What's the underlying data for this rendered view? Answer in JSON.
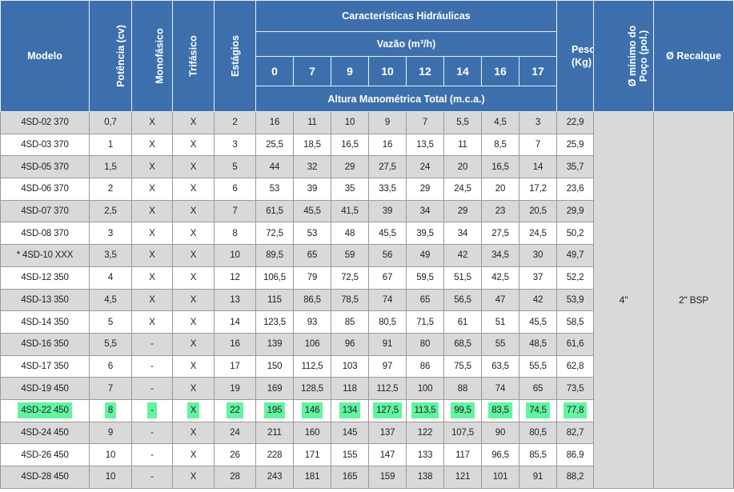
{
  "header": {
    "modelo": "Modelo",
    "potencia": "Potência (cv)",
    "monofasico": "Monofásico",
    "trifasico": "Trifásico",
    "estagios": "Estágios",
    "caracteristicas": "Características Hidráulicas",
    "vazao": "Vazão (m³/h)",
    "altura": "Altura Manométrica Total (m.c.a.)",
    "peso": "Peso (Kg)",
    "poco": "Ø mínimo do Poço (pol.)",
    "recalque": "Ø Recalque",
    "flows": [
      "0",
      "7",
      "9",
      "10",
      "12",
      "14",
      "16",
      "17"
    ]
  },
  "merged": {
    "poco_value": "4\"",
    "recalque_value": "2\" BSP"
  },
  "highlight_color": "#62f4a0",
  "rows": [
    {
      "modelo": "4SD-02 370",
      "potencia": "0,7",
      "mono": "X",
      "tri": "X",
      "estagios": "2",
      "heads": [
        "16",
        "11",
        "10",
        "9",
        "7",
        "5,5",
        "4,5",
        "3"
      ],
      "peso": "22,9"
    },
    {
      "modelo": "4SD-03 370",
      "potencia": "1",
      "mono": "X",
      "tri": "X",
      "estagios": "3",
      "heads": [
        "25,5",
        "18,5",
        "16,5",
        "16",
        "13,5",
        "11",
        "8,5",
        "7"
      ],
      "peso": "25,9"
    },
    {
      "modelo": "4SD-05 370",
      "potencia": "1,5",
      "mono": "X",
      "tri": "X",
      "estagios": "5",
      "heads": [
        "44",
        "32",
        "29",
        "27,5",
        "24",
        "20",
        "16,5",
        "14"
      ],
      "peso": "35,7"
    },
    {
      "modelo": "4SD-06 370",
      "potencia": "2",
      "mono": "X",
      "tri": "X",
      "estagios": "6",
      "heads": [
        "53",
        "39",
        "35",
        "33,5",
        "29",
        "24,5",
        "20",
        "17,2"
      ],
      "peso": "23,6"
    },
    {
      "modelo": "4SD-07 370",
      "potencia": "2,5",
      "mono": "X",
      "tri": "X",
      "estagios": "7",
      "heads": [
        "61,5",
        "45,5",
        "41,5",
        "39",
        "34",
        "29",
        "23",
        "20,5"
      ],
      "peso": "29,9"
    },
    {
      "modelo": "4SD-08 370",
      "potencia": "3",
      "mono": "X",
      "tri": "X",
      "estagios": "8",
      "heads": [
        "72,5",
        "53",
        "48",
        "45,5",
        "39,5",
        "34",
        "27,5",
        "24,5"
      ],
      "peso": "50,2"
    },
    {
      "modelo": "* 4SD-10 XXX",
      "potencia": "3,5",
      "mono": "X",
      "tri": "X",
      "estagios": "10",
      "heads": [
        "89,5",
        "65",
        "59",
        "56",
        "49",
        "42",
        "34,5",
        "30"
      ],
      "peso": "49,7"
    },
    {
      "modelo": "4SD-12 350",
      "potencia": "4",
      "mono": "X",
      "tri": "X",
      "estagios": "12",
      "heads": [
        "106,5",
        "79",
        "72,5",
        "67",
        "59,5",
        "51,5",
        "42,5",
        "37"
      ],
      "peso": "52,2"
    },
    {
      "modelo": "4SD-13 350",
      "potencia": "4,5",
      "mono": "X",
      "tri": "X",
      "estagios": "13",
      "heads": [
        "115",
        "86,5",
        "78,5",
        "74",
        "65",
        "56,5",
        "47",
        "42"
      ],
      "peso": "53,9"
    },
    {
      "modelo": "4SD-14 350",
      "potencia": "5",
      "mono": "X",
      "tri": "X",
      "estagios": "14",
      "heads": [
        "123,5",
        "93",
        "85",
        "80,5",
        "71,5",
        "61",
        "51",
        "45,5"
      ],
      "peso": "58,5"
    },
    {
      "modelo": "4SD-16 350",
      "potencia": "5,5",
      "mono": "-",
      "tri": "X",
      "estagios": "16",
      "heads": [
        "139",
        "106",
        "96",
        "91",
        "80",
        "68,5",
        "55",
        "48,5"
      ],
      "peso": "61,6"
    },
    {
      "modelo": "4SD-17 350",
      "potencia": "6",
      "mono": "-",
      "tri": "X",
      "estagios": "17",
      "heads": [
        "150",
        "112,5",
        "103",
        "97",
        "86",
        "75,5",
        "63,5",
        "55,5"
      ],
      "peso": "62,8"
    },
    {
      "modelo": "4SD-19 450",
      "potencia": "7",
      "mono": "-",
      "tri": "X",
      "estagios": "19",
      "heads": [
        "169",
        "128,5",
        "118",
        "112,5",
        "100",
        "88",
        "74",
        "65"
      ],
      "peso": "73,5"
    },
    {
      "modelo": "4SD-22 450",
      "potencia": "8",
      "mono": "-",
      "tri": "X",
      "estagios": "22",
      "heads": [
        "195",
        "146",
        "134",
        "127,5",
        "113,5",
        "99,5",
        "83,5",
        "74,5"
      ],
      "peso": "77,8",
      "highlighted": true
    },
    {
      "modelo": "4SD-24 450",
      "potencia": "9",
      "mono": "-",
      "tri": "X",
      "estagios": "24",
      "heads": [
        "211",
        "160",
        "145",
        "137",
        "122",
        "107,5",
        "90",
        "80,5"
      ],
      "peso": "82,7"
    },
    {
      "modelo": "4SD-26 450",
      "potencia": "10",
      "mono": "-",
      "tri": "X",
      "estagios": "26",
      "heads": [
        "228",
        "171",
        "155",
        "147",
        "133",
        "117",
        "96,5",
        "85,5"
      ],
      "peso": "86,9"
    },
    {
      "modelo": "4SD-28 450",
      "potencia": "10",
      "mono": "-",
      "tri": "X",
      "estagios": "28",
      "heads": [
        "243",
        "181",
        "165",
        "159",
        "138",
        "121",
        "101",
        "91"
      ],
      "peso": "88,2"
    }
  ]
}
